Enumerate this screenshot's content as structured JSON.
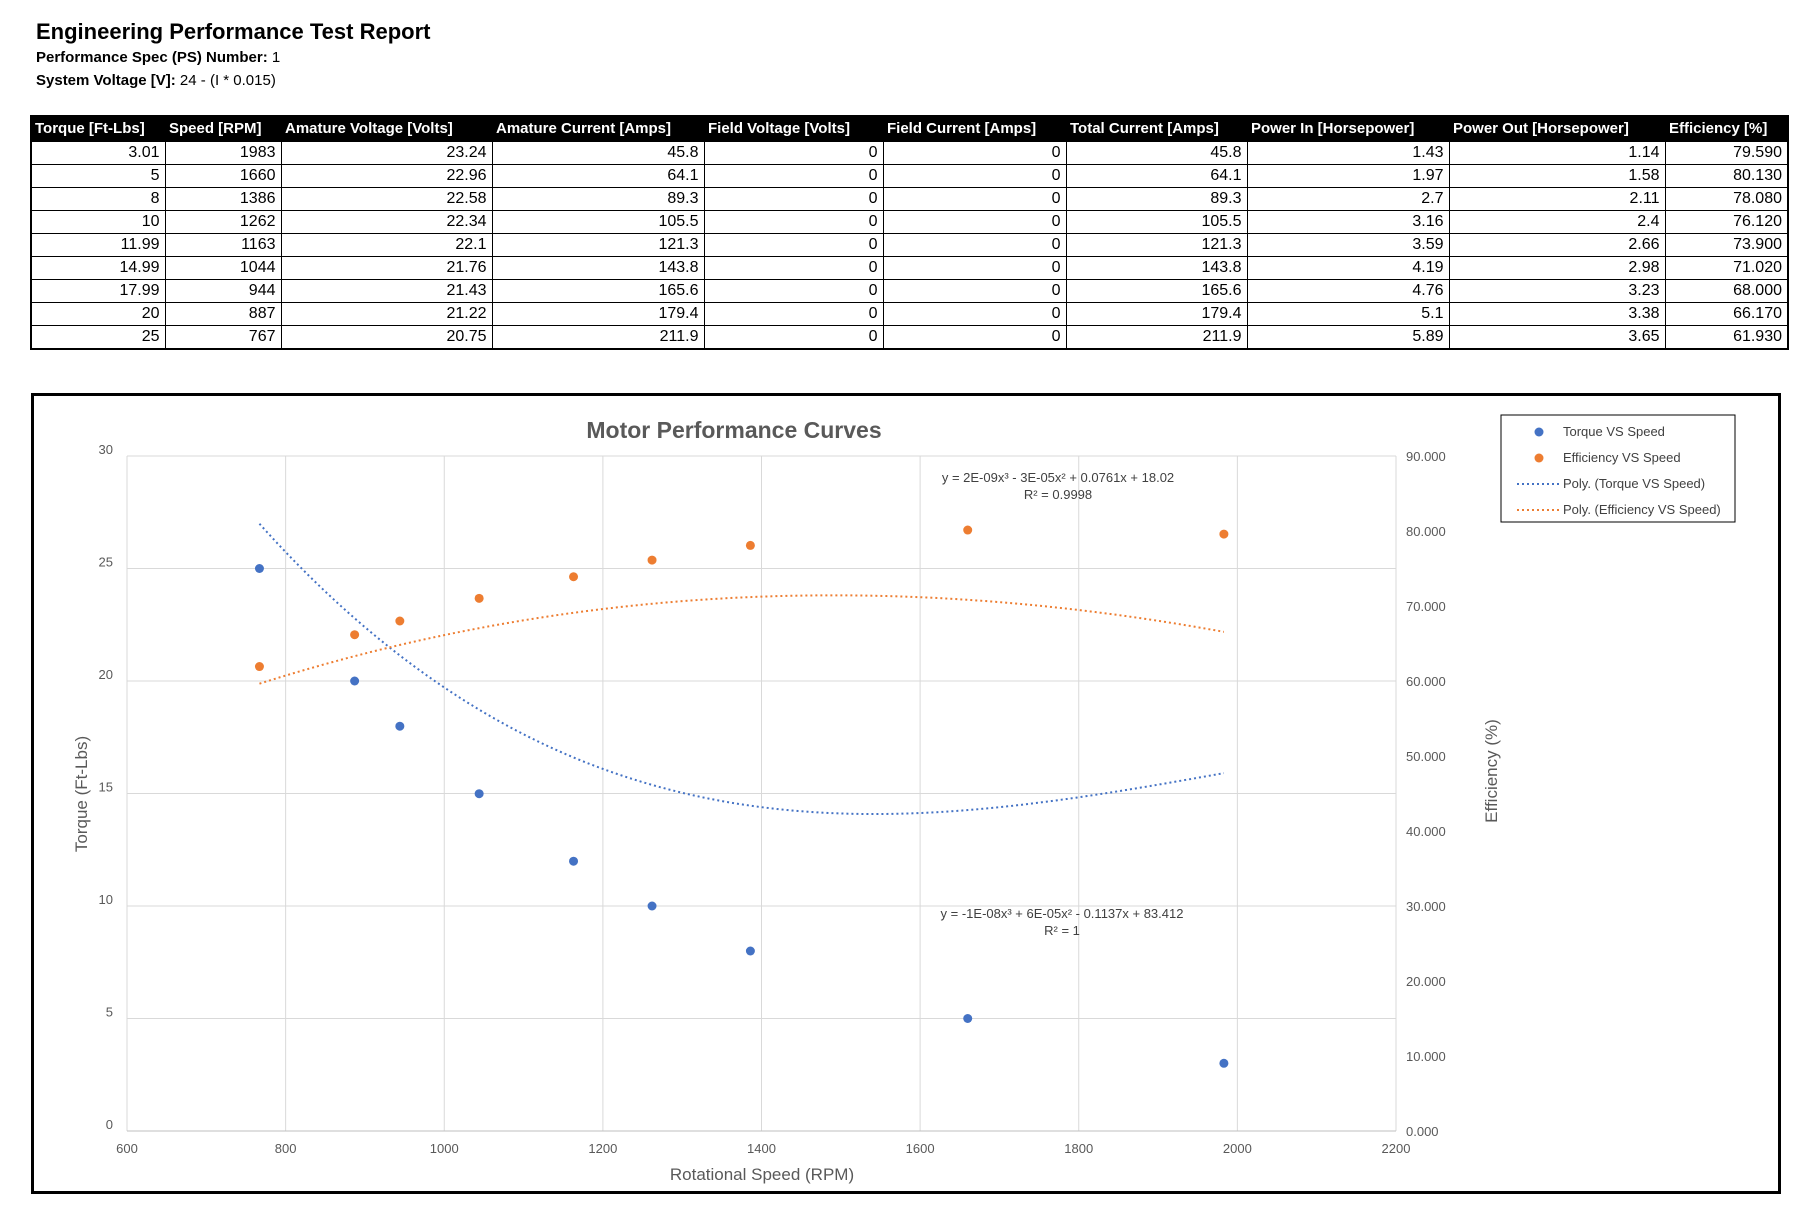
{
  "report": {
    "title": "Engineering Performance Test Report",
    "ps_label": "Performance Spec (PS) Number:",
    "ps_value": " 1",
    "voltage_label": "System Voltage [V]:",
    "voltage_value": " 24 - (I * 0.015)"
  },
  "table": {
    "headers": [
      "Torque [Ft-Lbs]",
      "Speed [RPM]",
      "Amature Voltage [Volts]",
      "Amature Current [Amps]",
      "Field Voltage [Volts]",
      "Field Current [Amps]",
      "Total Current [Amps]",
      "Power In [Horsepower]",
      "Power Out [Horsepower]",
      "Efficiency [%]"
    ],
    "rows": [
      [
        "3.01",
        "1983",
        "23.24",
        "45.8",
        "0",
        "0",
        "45.8",
        "1.43",
        "1.14",
        "79.590"
      ],
      [
        "5",
        "1660",
        "22.96",
        "64.1",
        "0",
        "0",
        "64.1",
        "1.97",
        "1.58",
        "80.130"
      ],
      [
        "8",
        "1386",
        "22.58",
        "89.3",
        "0",
        "0",
        "89.3",
        "2.7",
        "2.11",
        "78.080"
      ],
      [
        "10",
        "1262",
        "22.34",
        "105.5",
        "0",
        "0",
        "105.5",
        "3.16",
        "2.4",
        "76.120"
      ],
      [
        "11.99",
        "1163",
        "22.1",
        "121.3",
        "0",
        "0",
        "121.3",
        "3.59",
        "2.66",
        "73.900"
      ],
      [
        "14.99",
        "1044",
        "21.76",
        "143.8",
        "0",
        "0",
        "143.8",
        "4.19",
        "2.98",
        "71.020"
      ],
      [
        "17.99",
        "944",
        "21.43",
        "165.6",
        "0",
        "0",
        "165.6",
        "4.76",
        "3.23",
        "68.000"
      ],
      [
        "20",
        "887",
        "21.22",
        "179.4",
        "0",
        "0",
        "179.4",
        "5.1",
        "3.38",
        "66.170"
      ],
      [
        "25",
        "767",
        "20.75",
        "211.9",
        "0",
        "0",
        "211.9",
        "5.89",
        "3.65",
        "61.930"
      ]
    ]
  },
  "chart_data": {
    "type": "scatter",
    "title": "Motor Performance Curves",
    "xlabel": "Rotational Speed (RPM)",
    "ylabel": "Torque (Ft-Lbs)",
    "y2label": "Efficiency (%)",
    "xlim": [
      600,
      2200
    ],
    "ylim": [
      0,
      30
    ],
    "y2lim": [
      0,
      90
    ],
    "xticks": [
      "600",
      "800",
      "1000",
      "1200",
      "1400",
      "1600",
      "1800",
      "2000",
      "2200"
    ],
    "yticks": [
      "0",
      "5",
      "10",
      "15",
      "20",
      "25",
      "30"
    ],
    "y2ticks": [
      "0.000",
      "10.000",
      "20.000",
      "30.000",
      "40.000",
      "50.000",
      "60.000",
      "70.000",
      "80.000",
      "90.000"
    ],
    "grid": true,
    "legend_position": "top-right",
    "series": [
      {
        "name": "Torque VS Speed",
        "axis": "left",
        "color": "#4472C4",
        "x": [
          1983,
          1660,
          1386,
          1262,
          1163,
          1044,
          944,
          887,
          767
        ],
        "y": [
          3.01,
          5,
          8,
          10,
          11.99,
          14.99,
          17.99,
          20,
          25
        ]
      },
      {
        "name": "Efficiency VS Speed",
        "axis": "right",
        "color": "#ED7D31",
        "x": [
          1983,
          1660,
          1386,
          1262,
          1163,
          1044,
          944,
          887,
          767
        ],
        "y": [
          79.59,
          80.13,
          78.08,
          76.12,
          73.9,
          71.02,
          68.0,
          66.17,
          61.93
        ]
      }
    ],
    "trendlines": [
      {
        "name": "Poly. (Torque VS Speed)",
        "axis": "left",
        "color": "#4472C4",
        "coefficients": [
          -1e-08,
          6e-05,
          -0.1137,
          83.412
        ],
        "equation": "y = -1E-08x³ + 6E-05x² - 0.1137x + 83.412",
        "r2": "R² = 1"
      },
      {
        "name": "Poly. (Efficiency VS Speed)",
        "axis": "right",
        "color": "#ED7D31",
        "coefficients": [
          2e-09,
          -3e-05,
          0.0761,
          18.02
        ],
        "equation": "y = 2E-09x³ - 3E-05x² + 0.0761x + 18.02",
        "r2": "R² = 0.9998"
      }
    ]
  }
}
